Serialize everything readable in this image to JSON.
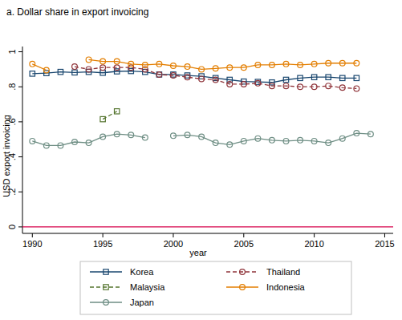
{
  "chart_data": {
    "type": "line",
    "title": "a. Dollar share in export invoicing",
    "x_label": "year",
    "y_label": "USD export invoicing",
    "x": [
      1990,
      1991,
      1992,
      1993,
      1994,
      1995,
      1996,
      1997,
      1998,
      1999,
      2000,
      2001,
      2002,
      2003,
      2004,
      2005,
      2006,
      2007,
      2008,
      2009,
      2010,
      2011,
      2012,
      2013,
      2014
    ],
    "series": [
      {
        "name": "Korea",
        "color": "#1a476f",
        "marker": "square",
        "line_style": "solid",
        "values": [
          0.875,
          0.878,
          0.885,
          0.882,
          0.885,
          0.88,
          0.888,
          0.89,
          0.885,
          0.87,
          0.87,
          0.865,
          0.86,
          0.85,
          0.84,
          0.83,
          0.828,
          0.825,
          0.84,
          0.85,
          0.855,
          0.855,
          0.85,
          0.85,
          null
        ]
      },
      {
        "name": "Thailand",
        "color": "#90353b",
        "marker": "circle",
        "line_style": "dashed",
        "values": [
          null,
          null,
          null,
          0.915,
          0.9,
          0.91,
          0.91,
          0.91,
          0.9,
          0.87,
          0.865,
          0.855,
          0.845,
          0.84,
          0.815,
          0.815,
          0.82,
          0.805,
          0.805,
          0.8,
          0.8,
          0.805,
          0.795,
          0.79,
          null
        ]
      },
      {
        "name": "Malaysia",
        "color": "#55752f",
        "marker": "square",
        "line_style": "dashed",
        "values": [
          null,
          null,
          null,
          null,
          null,
          0.615,
          0.66,
          null,
          null,
          null,
          null,
          null,
          null,
          null,
          null,
          null,
          null,
          null,
          null,
          null,
          null,
          null,
          null,
          null,
          null
        ]
      },
      {
        "name": "Indonesia",
        "color": "#e37e00",
        "marker": "circle",
        "line_style": "solid",
        "values": [
          0.93,
          0.895,
          null,
          null,
          0.955,
          0.945,
          0.945,
          0.93,
          0.925,
          0.93,
          0.92,
          0.915,
          0.9,
          0.905,
          0.91,
          0.91,
          0.925,
          0.925,
          0.93,
          0.925,
          0.93,
          0.935,
          0.935,
          0.935,
          null
        ]
      },
      {
        "name": "Japan",
        "color": "#6e8e84",
        "marker": "circle",
        "line_style": "solid",
        "values": [
          0.49,
          0.465,
          0.465,
          0.485,
          0.48,
          0.515,
          0.53,
          0.525,
          0.51,
          null,
          0.52,
          0.525,
          0.515,
          0.48,
          0.47,
          0.49,
          0.505,
          0.495,
          0.49,
          0.495,
          0.49,
          0.48,
          0.505,
          0.535,
          0.53
        ]
      }
    ],
    "hlines": [
      {
        "y": 0,
        "color": "#d6004a"
      }
    ],
    "xlim": [
      1989.3,
      2015.6
    ],
    "xticks": [
      1990,
      1995,
      2000,
      2005,
      2010,
      2015
    ],
    "ylim": [
      -0.037,
      1.03
    ],
    "yticks": [
      0,
      {
        "value": 0.2,
        "label": ".2"
      },
      {
        "value": 0.4,
        "label": ".4"
      },
      {
        "value": 0.6,
        "label": ".6"
      },
      {
        "value": 0.8,
        "label": ".8"
      },
      1
    ],
    "legend": "bottom",
    "grid": false
  }
}
